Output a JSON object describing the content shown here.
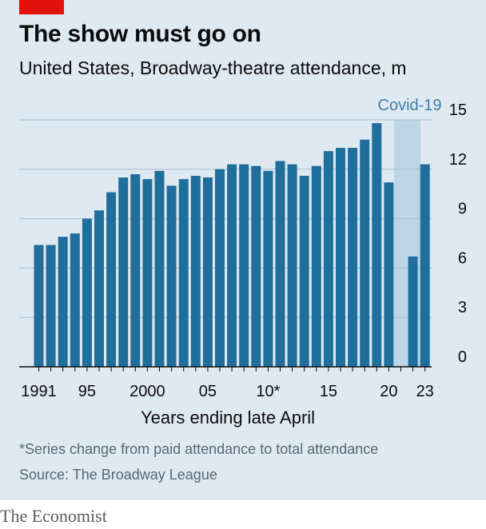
{
  "header": {
    "title": "The show must go on",
    "subtitle": "United States, Broadway-theatre attendance, m"
  },
  "footer": {
    "footnote": "*Series change from paid attendance to total attendance",
    "source": "Source: The Broadway League",
    "brand": "The Economist"
  },
  "colors": {
    "bar": "#1f6e9c",
    "panel": "#dfe9f1",
    "shade": "#bcd6e6",
    "accent": "#e3120b"
  },
  "chart_data": {
    "type": "bar",
    "title": "The show must go on",
    "subtitle": "United States, Broadway-theatre attendance, m",
    "xlabel": "Years ending late April",
    "ylabel": "",
    "ylim": [
      0,
      15
    ],
    "yticks": [
      "0",
      "3",
      "6",
      "9",
      "12",
      "15"
    ],
    "grid": true,
    "x_tick_labels": [
      {
        "year": 1991,
        "label": "1991"
      },
      {
        "year": 1995,
        "label": "95"
      },
      {
        "year": 2000,
        "label": "2000"
      },
      {
        "year": 2005,
        "label": "05"
      },
      {
        "year": 2010,
        "label": "10*"
      },
      {
        "year": 2015,
        "label": "15"
      },
      {
        "year": 2020,
        "label": "20"
      },
      {
        "year": 2023,
        "label": "23"
      }
    ],
    "annotation": {
      "label": "Covid-19",
      "from_year": 2021,
      "to_year": 2022
    },
    "categories": [
      1991,
      1992,
      1993,
      1994,
      1995,
      1996,
      1997,
      1998,
      1999,
      2000,
      2001,
      2002,
      2003,
      2004,
      2005,
      2006,
      2007,
      2008,
      2009,
      2010,
      2011,
      2012,
      2013,
      2014,
      2015,
      2016,
      2017,
      2018,
      2019,
      2020,
      2021,
      2022,
      2023
    ],
    "values": [
      7.4,
      7.4,
      7.9,
      8.1,
      9.0,
      9.5,
      10.6,
      11.5,
      11.7,
      11.4,
      11.9,
      11.0,
      11.4,
      11.6,
      11.5,
      12.0,
      12.3,
      12.3,
      12.2,
      11.9,
      12.5,
      12.3,
      11.6,
      12.2,
      13.1,
      13.3,
      13.3,
      13.8,
      14.8,
      11.2,
      0,
      6.7,
      12.3
    ]
  }
}
